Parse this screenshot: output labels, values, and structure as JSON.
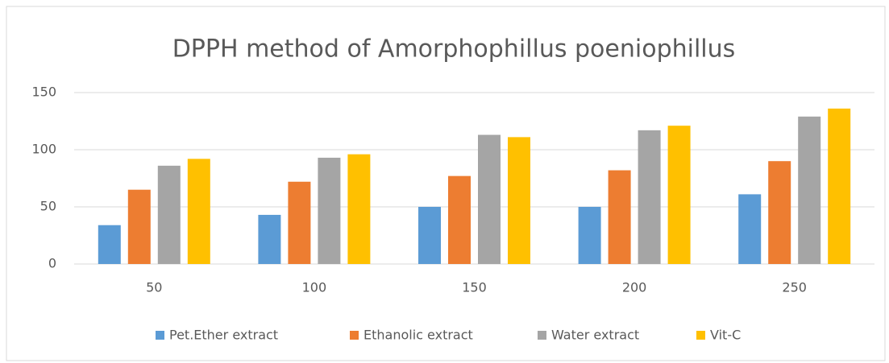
{
  "chart_data": {
    "type": "bar",
    "title": "DPPH method of Amorphophillus poeniophillus",
    "categories": [
      "50",
      "100",
      "150",
      "200",
      "250"
    ],
    "series": [
      {
        "name": "Pet.Ether extract",
        "color": "#5b9bd5",
        "values": [
          34,
          43,
          50,
          50,
          61
        ]
      },
      {
        "name": "Ethanolic extract",
        "color": "#ed7d31",
        "values": [
          65,
          72,
          77,
          82,
          90
        ]
      },
      {
        "name": "Water extract",
        "color": "#a5a5a5",
        "values": [
          86,
          93,
          113,
          117,
          129
        ]
      },
      {
        "name": "Vit-C",
        "color": "#ffc000",
        "values": [
          92,
          96,
          111,
          121,
          136
        ]
      }
    ],
    "ylim": [
      0,
      150
    ],
    "yticks": [
      0,
      50,
      100,
      150
    ],
    "grid": true,
    "legend": "bottom"
  }
}
